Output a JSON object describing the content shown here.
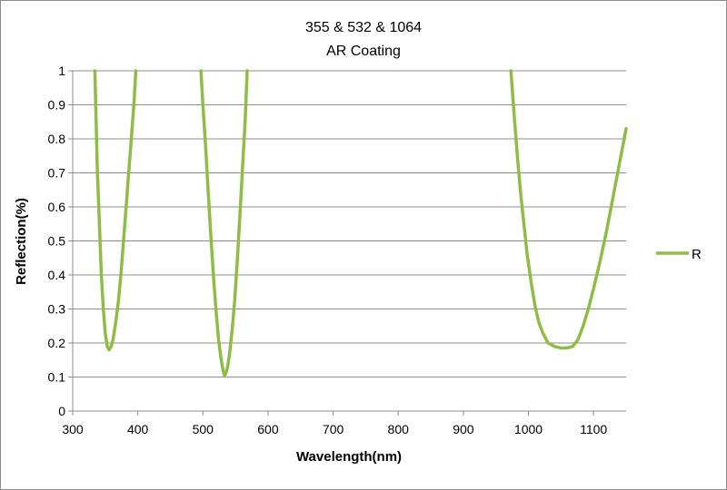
{
  "chart_data": {
    "type": "line",
    "title": "355 & 532 & 1064",
    "subtitle": "AR Coating",
    "xlabel": "Wavelength(nm)",
    "ylabel": "Reflection(%)",
    "xlim": [
      300,
      1150
    ],
    "ylim": [
      0,
      1
    ],
    "x_ticks": [
      300,
      400,
      500,
      600,
      700,
      800,
      900,
      1000,
      1100
    ],
    "y_ticks": [
      0,
      0.1,
      0.2,
      0.3,
      0.4,
      0.5,
      0.6,
      0.7,
      0.8,
      0.9,
      1
    ],
    "y_tick_labels": [
      "0",
      "0.1",
      "0.2",
      "0.3",
      "0.4",
      "0.5",
      "0.6",
      "0.7",
      "0.8",
      "0.9",
      "1"
    ],
    "grid": true,
    "legend_position": "right",
    "series": [
      {
        "name": "R",
        "color": "#8fbc45",
        "segments": [
          [
            [
              334,
              1.0
            ],
            [
              336,
              0.85
            ],
            [
              338,
              0.7
            ],
            [
              341,
              0.55
            ],
            [
              344,
              0.4
            ],
            [
              347,
              0.3
            ],
            [
              350,
              0.23
            ],
            [
              353,
              0.19
            ],
            [
              356,
              0.18
            ],
            [
              359,
              0.19
            ],
            [
              362,
              0.21
            ],
            [
              366,
              0.26
            ],
            [
              370,
              0.32
            ],
            [
              374,
              0.4
            ],
            [
              378,
              0.5
            ],
            [
              382,
              0.6
            ],
            [
              386,
              0.7
            ],
            [
              390,
              0.8
            ],
            [
              394,
              0.9
            ],
            [
              397,
              1.0
            ]
          ],
          [
            [
              497,
              1.0
            ],
            [
              500,
              0.9
            ],
            [
              504,
              0.78
            ],
            [
              508,
              0.65
            ],
            [
              512,
              0.52
            ],
            [
              516,
              0.4
            ],
            [
              520,
              0.3
            ],
            [
              524,
              0.21
            ],
            [
              528,
              0.15
            ],
            [
              531,
              0.12
            ],
            [
              533,
              0.105
            ],
            [
              535,
              0.11
            ],
            [
              538,
              0.13
            ],
            [
              541,
              0.17
            ],
            [
              545,
              0.24
            ],
            [
              549,
              0.33
            ],
            [
              553,
              0.45
            ],
            [
              557,
              0.58
            ],
            [
              561,
              0.72
            ],
            [
              565,
              0.86
            ],
            [
              568,
              1.0
            ]
          ],
          [
            [
              973,
              1.0
            ],
            [
              978,
              0.87
            ],
            [
              983,
              0.75
            ],
            [
              988,
              0.64
            ],
            [
              993,
              0.55
            ],
            [
              998,
              0.46
            ],
            [
              1004,
              0.38
            ],
            [
              1010,
              0.31
            ],
            [
              1016,
              0.26
            ],
            [
              1022,
              0.23
            ],
            [
              1030,
              0.2
            ],
            [
              1040,
              0.19
            ],
            [
              1050,
              0.185
            ],
            [
              1060,
              0.186
            ],
            [
              1068,
              0.19
            ],
            [
              1076,
              0.21
            ],
            [
              1084,
              0.25
            ],
            [
              1092,
              0.3
            ],
            [
              1100,
              0.36
            ],
            [
              1110,
              0.44
            ],
            [
              1120,
              0.53
            ],
            [
              1130,
              0.63
            ],
            [
              1140,
              0.73
            ],
            [
              1150,
              0.83
            ]
          ]
        ]
      }
    ]
  }
}
